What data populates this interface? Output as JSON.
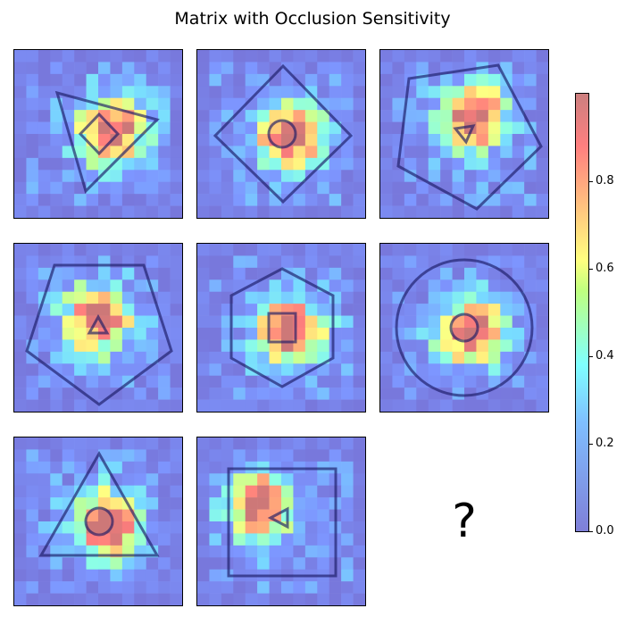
{
  "title": "Matrix with Occlusion Sensitivity",
  "missing_cell_label": "?",
  "colorbar": {
    "ticks": [
      "0.0",
      "0.2",
      "0.4",
      "0.6",
      "0.8"
    ],
    "range": [
      0,
      1
    ]
  },
  "panels": [
    {
      "outer_shape": "triangle",
      "inner_shape": "diamond",
      "hot_region": "center-right"
    },
    {
      "outer_shape": "diamond",
      "inner_shape": "circle",
      "hot_region": "center"
    },
    {
      "outer_shape": "pentagon",
      "inner_shape": "triangle",
      "hot_region": "upper-center"
    },
    {
      "outer_shape": "pentagon",
      "inner_shape": "triangle",
      "hot_region": "center-left"
    },
    {
      "outer_shape": "hexagon",
      "inner_shape": "square",
      "hot_region": "center"
    },
    {
      "outer_shape": "circle",
      "inner_shape": "circle",
      "hot_region": "center"
    },
    {
      "outer_shape": "triangle",
      "inner_shape": "circle",
      "hot_region": "center"
    },
    {
      "outer_shape": "square",
      "inner_shape": "triangle",
      "hot_region": "upper-left"
    }
  ]
}
